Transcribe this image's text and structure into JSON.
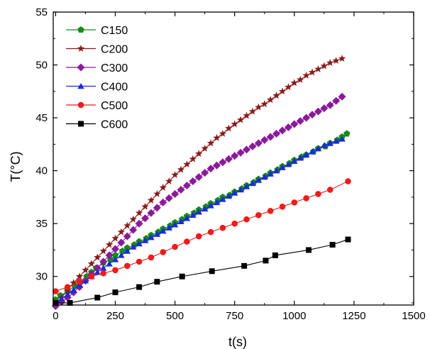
{
  "chart_data": {
    "type": "line",
    "xlabel": "t(s)",
    "ylabel": "T(°C)",
    "xlim": [
      -10,
      1500
    ],
    "ylim": [
      27.3,
      55
    ],
    "xticks": [
      0,
      250,
      500,
      750,
      1000,
      1250,
      1500
    ],
    "yticks": [
      30,
      35,
      40,
      45,
      50,
      55
    ],
    "legend_position": "top-left",
    "series": [
      {
        "name": "C150",
        "color": "#1a8a1a",
        "marker": "pentagon",
        "x": [
          0,
          20,
          50,
          80,
          100,
          130,
          150,
          170,
          200,
          230,
          250,
          280,
          300,
          330,
          350,
          380,
          400,
          430,
          450,
          480,
          500,
          530,
          550,
          580,
          600,
          630,
          650,
          680,
          700,
          730,
          750,
          780,
          800,
          830,
          850,
          880,
          900,
          930,
          950,
          980,
          1000,
          1030,
          1050,
          1080,
          1100,
          1130,
          1150,
          1180,
          1200,
          1220
        ],
        "y": [
          27.8,
          28.2,
          28.6,
          29.1,
          29.5,
          30.0,
          30.4,
          30.8,
          31.3,
          31.6,
          32.0,
          32.4,
          32.7,
          33.0,
          33.3,
          33.6,
          33.9,
          34.2,
          34.5,
          34.8,
          35.1,
          35.4,
          35.7,
          36.0,
          36.3,
          36.6,
          36.9,
          37.2,
          37.5,
          37.7,
          38.0,
          38.3,
          38.6,
          38.9,
          39.2,
          39.5,
          39.8,
          40.1,
          40.4,
          40.7,
          41.0,
          41.3,
          41.5,
          41.8,
          42.1,
          42.3,
          42.6,
          42.9,
          43.2,
          43.5
        ]
      },
      {
        "name": "C200",
        "color": "#8b1a1a",
        "marker": "star",
        "x": [
          0,
          25,
          50,
          75,
          100,
          125,
          150,
          175,
          200,
          225,
          250,
          275,
          300,
          325,
          350,
          375,
          400,
          425,
          450,
          475,
          500,
          525,
          550,
          575,
          600,
          625,
          650,
          675,
          700,
          725,
          750,
          775,
          800,
          825,
          850,
          875,
          900,
          925,
          950,
          975,
          1000,
          1025,
          1050,
          1075,
          1100,
          1125,
          1150,
          1175,
          1200
        ],
        "y": [
          27.3,
          28.0,
          28.7,
          29.4,
          30.0,
          30.6,
          31.2,
          31.8,
          32.4,
          33.0,
          33.6,
          34.2,
          34.8,
          35.4,
          36.0,
          36.6,
          37.2,
          37.8,
          38.4,
          39.0,
          39.6,
          40.1,
          40.6,
          41.1,
          41.6,
          42.1,
          42.6,
          43.1,
          43.5,
          44.0,
          44.4,
          44.8,
          45.2,
          45.6,
          46.0,
          46.3,
          46.7,
          47.1,
          47.5,
          47.9,
          48.3,
          48.6,
          49.0,
          49.3,
          49.6,
          49.9,
          50.2,
          50.4,
          50.6
        ]
      },
      {
        "name": "C300",
        "color": "#8b1a9a",
        "marker": "diamond",
        "x": [
          0,
          25,
          50,
          75,
          100,
          125,
          150,
          175,
          200,
          225,
          250,
          275,
          300,
          325,
          350,
          375,
          400,
          425,
          450,
          475,
          500,
          525,
          550,
          575,
          600,
          625,
          650,
          675,
          700,
          725,
          750,
          775,
          800,
          825,
          850,
          875,
          900,
          925,
          950,
          975,
          1000,
          1025,
          1050,
          1075,
          1100,
          1125,
          1150,
          1175,
          1200
        ],
        "y": [
          27.2,
          27.6,
          28.0,
          28.5,
          29.0,
          29.6,
          30.2,
          30.8,
          31.4,
          32.0,
          32.6,
          33.2,
          33.8,
          34.4,
          35.0,
          35.5,
          36.0,
          36.5,
          37.0,
          37.4,
          37.8,
          38.2,
          38.6,
          39.0,
          39.4,
          39.8,
          40.2,
          40.5,
          40.8,
          41.1,
          41.4,
          41.7,
          42.0,
          42.3,
          42.6,
          42.9,
          43.2,
          43.5,
          43.8,
          44.1,
          44.4,
          44.7,
          45.0,
          45.3,
          45.6,
          45.9,
          46.2,
          46.6,
          47.0
        ]
      },
      {
        "name": "C400",
        "color": "#1a2adb",
        "marker": "triangle",
        "x": [
          0,
          25,
          50,
          75,
          100,
          125,
          150,
          175,
          200,
          225,
          250,
          275,
          300,
          325,
          350,
          375,
          400,
          425,
          450,
          475,
          500,
          525,
          550,
          575,
          600,
          625,
          650,
          675,
          700,
          725,
          750,
          775,
          800,
          825,
          850,
          875,
          900,
          925,
          950,
          975,
          1000,
          1025,
          1050,
          1075,
          1100,
          1125,
          1150,
          1175,
          1200
        ],
        "y": [
          27.5,
          27.9,
          28.3,
          28.7,
          29.2,
          29.6,
          30.0,
          30.4,
          30.8,
          31.2,
          31.6,
          32.0,
          32.4,
          32.8,
          33.1,
          33.4,
          33.7,
          34.0,
          34.3,
          34.6,
          34.9,
          35.2,
          35.5,
          35.8,
          36.1,
          36.4,
          36.7,
          37.0,
          37.3,
          37.6,
          37.9,
          38.2,
          38.5,
          38.8,
          39.1,
          39.4,
          39.7,
          40.0,
          40.3,
          40.6,
          40.9,
          41.2,
          41.5,
          41.8,
          42.1,
          42.4,
          42.6,
          42.8,
          43.0
        ]
      },
      {
        "name": "C500",
        "color": "#ee1c1c",
        "marker": "circle",
        "x": [
          0,
          50,
          100,
          150,
          200,
          250,
          300,
          350,
          400,
          450,
          500,
          550,
          600,
          650,
          700,
          750,
          800,
          850,
          900,
          950,
          1000,
          1050,
          1100,
          1150,
          1225
        ],
        "y": [
          28.6,
          29.0,
          29.5,
          30.0,
          30.3,
          30.6,
          31.0,
          31.4,
          31.8,
          32.3,
          32.8,
          33.3,
          33.8,
          34.2,
          34.6,
          35.0,
          35.4,
          35.8,
          36.2,
          36.6,
          37.0,
          37.4,
          37.8,
          38.2,
          39.0
        ]
      },
      {
        "name": "C600",
        "color": "#000000",
        "marker": "square",
        "x": [
          0,
          60,
          175,
          250,
          350,
          425,
          530,
          655,
          790,
          880,
          920,
          1060,
          1160,
          1225
        ],
        "y": [
          27.5,
          27.5,
          28.0,
          28.5,
          29.0,
          29.5,
          30.0,
          30.5,
          31.0,
          31.5,
          32.0,
          32.5,
          33.0,
          33.5
        ]
      }
    ]
  }
}
